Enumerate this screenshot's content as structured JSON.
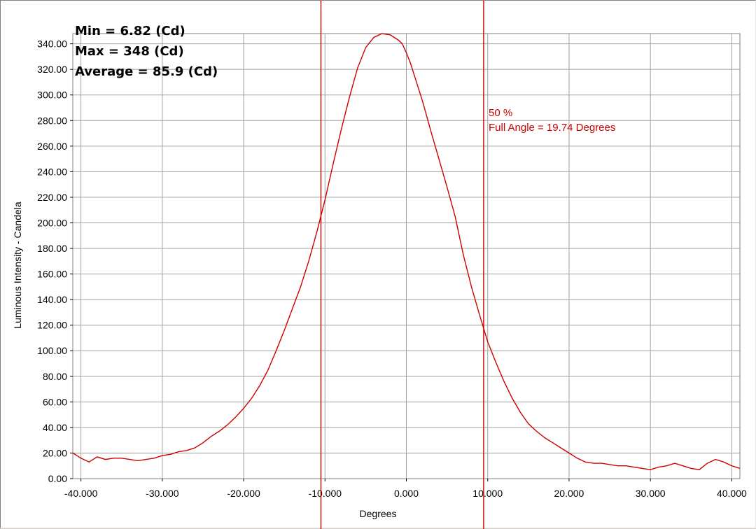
{
  "chart_data": {
    "type": "line",
    "title": "",
    "xlabel": "Degrees",
    "ylabel": "Luminous Intensity - Candela",
    "xlim": [
      -41,
      41
    ],
    "ylim": [
      0,
      348
    ],
    "x_ticks": [
      -40,
      -30,
      -20,
      -10,
      0,
      10,
      20,
      30,
      40
    ],
    "x_tick_labels": [
      "-40.000",
      "-30.000",
      "-20.000",
      "-10.000",
      "0.000",
      "10.000",
      "20.000",
      "30.000",
      "40.000"
    ],
    "y_ticks": [
      0,
      20,
      40,
      60,
      80,
      100,
      120,
      140,
      160,
      180,
      200,
      220,
      240,
      260,
      280,
      300,
      320,
      340
    ],
    "y_tick_labels": [
      "0.00",
      "20.00",
      "40.00",
      "60.00",
      "80.00",
      "100.00",
      "120.00",
      "140.00",
      "160.00",
      "180.00",
      "200.00",
      "220.00",
      "240.00",
      "260.00",
      "280.00",
      "300.00",
      "320.00",
      "340.00"
    ],
    "grid": true,
    "line_color": "#cc0000",
    "series": [
      {
        "name": "",
        "x": [
          -41,
          -40,
          -39,
          -38,
          -37,
          -36,
          -35,
          -34,
          -33,
          -32,
          -31,
          -30,
          -29,
          -28,
          -27,
          -26,
          -25,
          -24,
          -23,
          -22,
          -21,
          -20,
          -19,
          -18,
          -17,
          -16,
          -15,
          -14,
          -13,
          -12,
          -11,
          -10,
          -9,
          -8,
          -7,
          -6,
          -5,
          -4,
          -3,
          -2,
          -1,
          -0.5,
          0,
          0.5,
          1,
          2,
          3,
          4,
          5,
          6,
          7,
          8,
          9,
          10,
          11,
          12,
          13,
          14,
          15,
          16,
          17,
          18,
          19,
          20,
          21,
          22,
          23,
          24,
          25,
          26,
          27,
          28,
          29,
          30,
          31,
          32,
          33,
          34,
          35,
          36,
          37,
          38,
          39,
          40,
          41
        ],
        "values": [
          20,
          16,
          13,
          17,
          15,
          16,
          16,
          15,
          14,
          15,
          16,
          18,
          19,
          21,
          22,
          24,
          28,
          33,
          37,
          42,
          48,
          55,
          63,
          73,
          85,
          100,
          116,
          133,
          150,
          170,
          193,
          218,
          246,
          273,
          298,
          321,
          337,
          345,
          348,
          347,
          343,
          340,
          333,
          325,
          315,
          295,
          272,
          250,
          228,
          205,
          175,
          150,
          128,
          107,
          91,
          76,
          63,
          52,
          43,
          37,
          32,
          28,
          24,
          20,
          16,
          13,
          12,
          12,
          11,
          10,
          10,
          9,
          8,
          7,
          9,
          10,
          12,
          10,
          8,
          7,
          12,
          15,
          13,
          10,
          8
        ]
      }
    ],
    "vlines": [
      -10.5,
      9.5
    ],
    "stats": {
      "min": "Min = 6.82 (Cd)",
      "max": "Max = 348 (Cd)",
      "average": "Average = 85.9 (Cd)"
    },
    "annotation": {
      "line1": "50 %",
      "line2": "Full Angle = 19.74 Degrees"
    }
  }
}
